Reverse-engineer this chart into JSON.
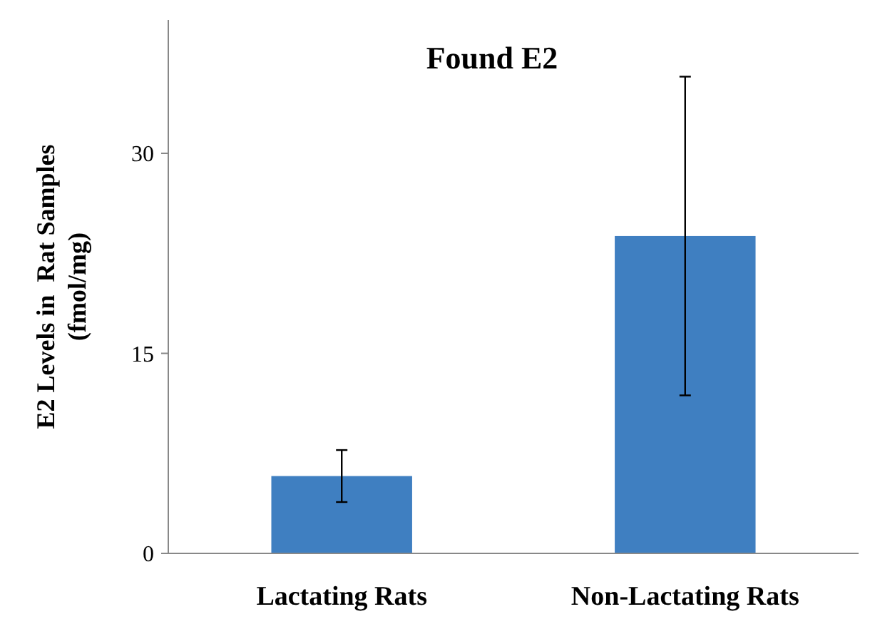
{
  "chart_data": {
    "type": "bar",
    "title": "Found E2",
    "ylabel": "E2 Levels in  Rat Samples\n(fmol/mg)",
    "categories": [
      "Lactating Rats",
      "Non-Lactating Rats"
    ],
    "values": [
      5.8,
      23.8
    ],
    "errors": [
      1.95,
      11.95
    ],
    "color": "#3f7fc1",
    "ylim": [
      0,
      40
    ],
    "yticks": [
      0,
      15,
      30
    ]
  }
}
